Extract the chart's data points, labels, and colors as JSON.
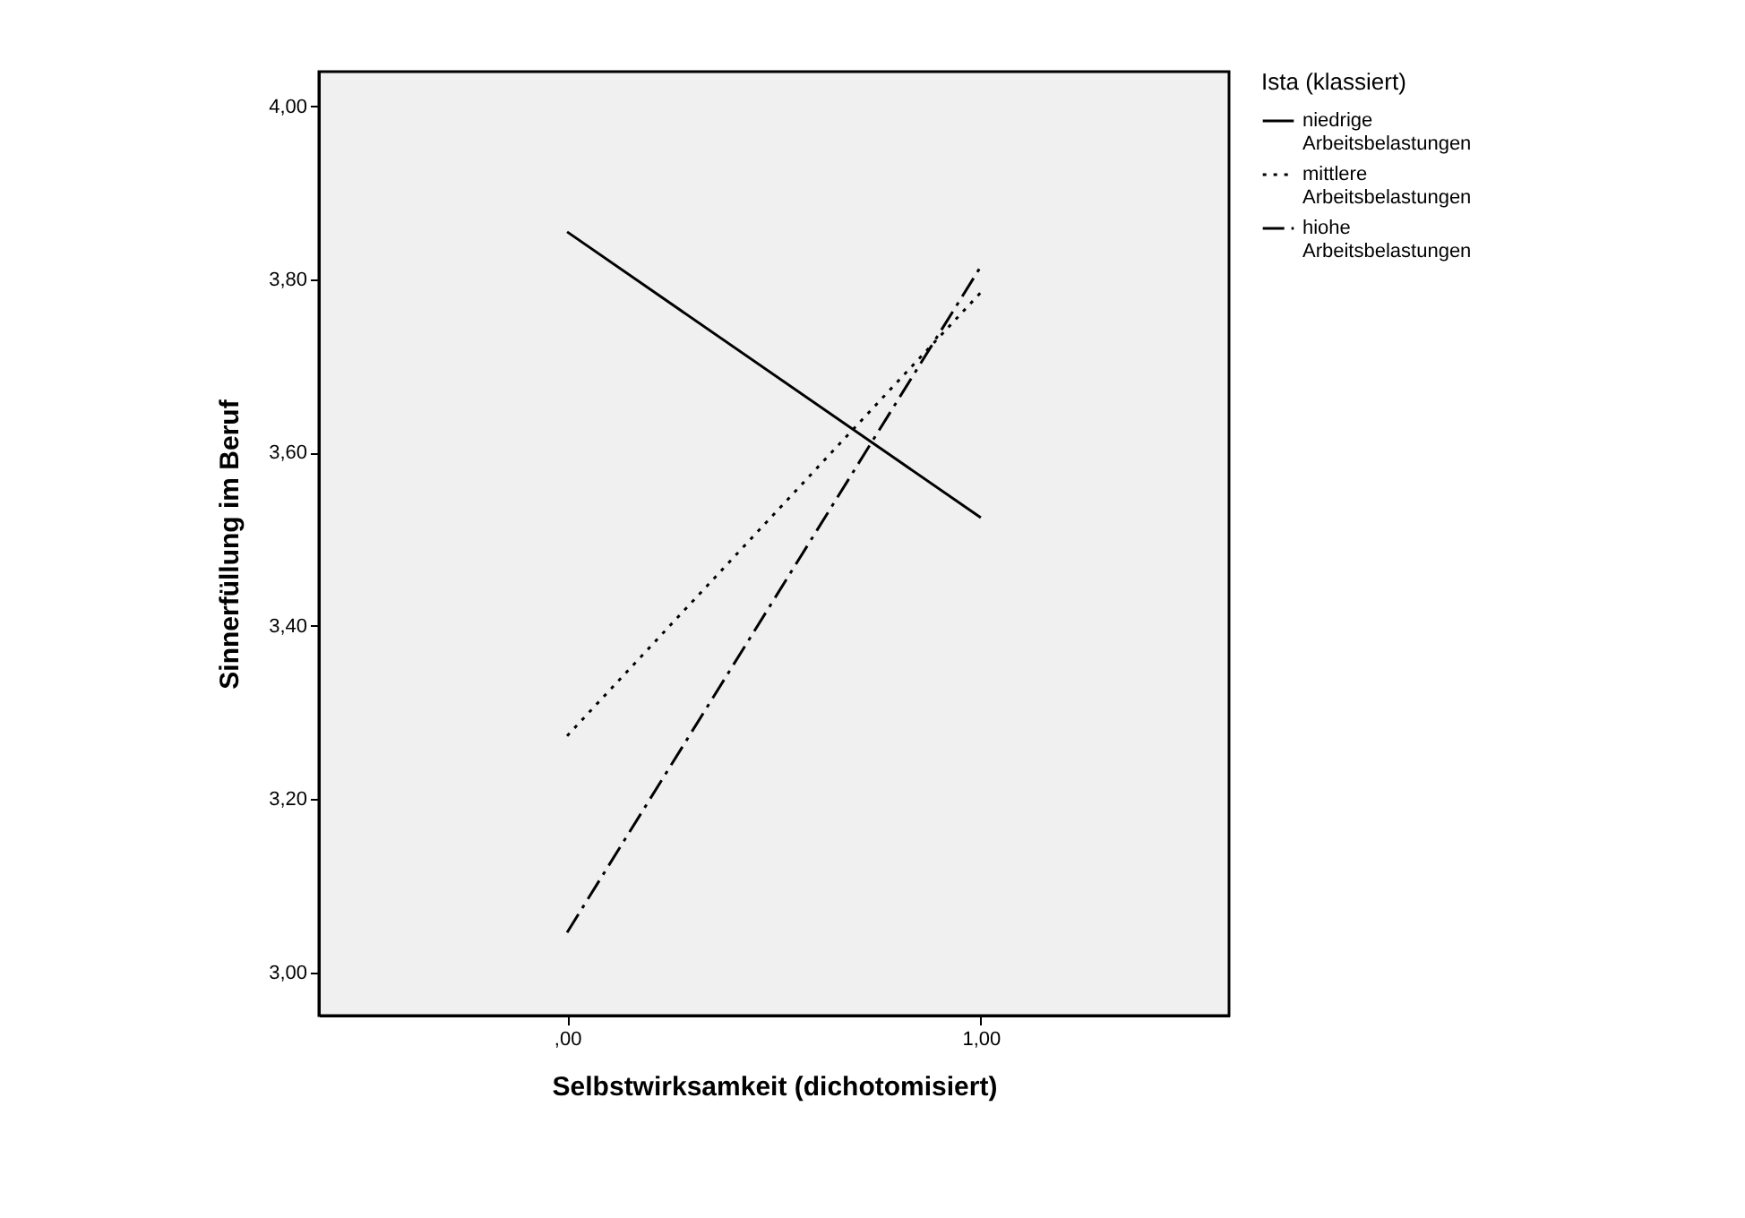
{
  "chart_data": {
    "type": "line",
    "xlabel": "Selbstwirksamkeit (dichotomisiert)",
    "ylabel": "Sinnerfüllung im Beruf",
    "legend_title": "Ista (klassiert)",
    "legend": "top right",
    "grid": false,
    "marker": "none",
    "x": [
      0,
      1
    ],
    "xlim": [
      -0.6,
      1.6
    ],
    "xticks": [
      {
        "value": 0,
        "label": ",00"
      },
      {
        "value": 1,
        "label": "1,00"
      }
    ],
    "ylim": [
      2.95,
      4.04
    ],
    "yticks": [
      {
        "value": 3.0,
        "label": "3,00"
      },
      {
        "value": 3.2,
        "label": "3,20"
      },
      {
        "value": 3.4,
        "label": "3,40"
      },
      {
        "value": 3.6,
        "label": "3,60"
      },
      {
        "value": 3.8,
        "label": "3,80"
      },
      {
        "value": 4.0,
        "label": "4,00"
      }
    ],
    "series": [
      {
        "name": "niedrige Arbeitsbelastungen",
        "color": "#000000",
        "line_style": "solid",
        "values": [
          3.855,
          3.525
        ]
      },
      {
        "name": "mittlere Arbeitsbelastungen",
        "color": "#000000",
        "line_style": "dotted",
        "values": [
          3.273,
          3.785
        ]
      },
      {
        "name": "hiohe Arbeitsbelastungen",
        "color": "#000000",
        "line_style": "dashdot",
        "values": [
          3.046,
          3.815
        ]
      }
    ]
  }
}
